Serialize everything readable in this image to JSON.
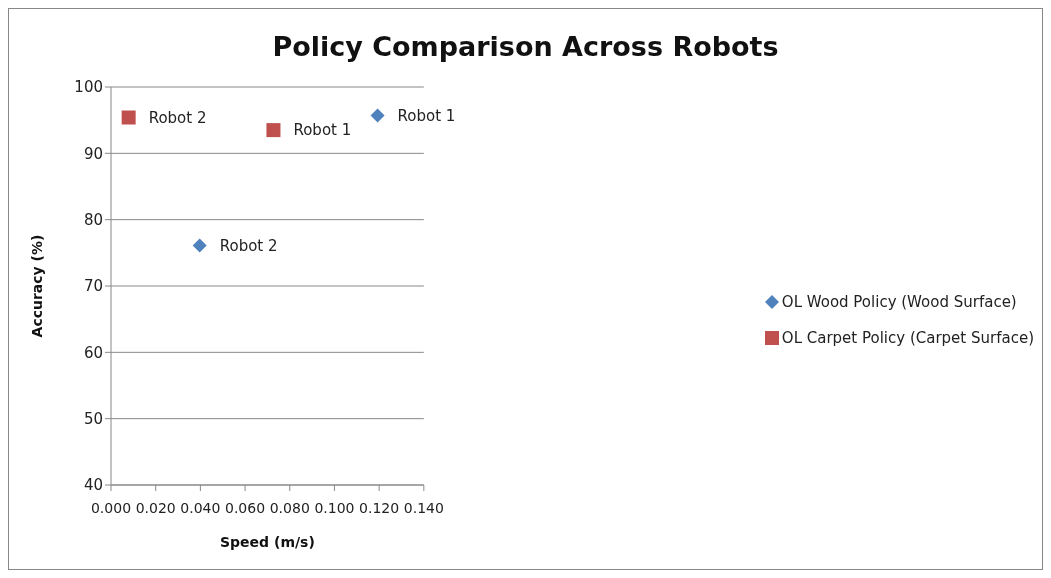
{
  "chart_data": {
    "type": "scatter",
    "title": "Policy Comparison Across Robots",
    "xlabel": "Speed (m/s)",
    "ylabel": "Accuracy  (%)",
    "xlim": [
      0,
      0.14
    ],
    "xticks": [
      {
        "value": 0,
        "label": "0.000"
      },
      {
        "value": 0.02,
        "label": "0.020"
      },
      {
        "value": 0.04,
        "label": "0.040"
      },
      {
        "value": 0.06,
        "label": "0.060"
      },
      {
        "value": 0.08,
        "label": "0.080"
      },
      {
        "value": 0.1,
        "label": "0.100"
      },
      {
        "value": 0.12,
        "label": "0.120"
      },
      {
        "value": 0.14,
        "label": "0.140"
      }
    ],
    "ylim": [
      40,
      100
    ],
    "yticks": [
      40,
      50,
      60,
      70,
      80,
      90,
      100
    ],
    "grid": "y",
    "legend": "right",
    "series": [
      {
        "name": "OL Wood Policy (Wood Surface)",
        "color": "#4f81bd",
        "marker": "diamond",
        "x": [
          0.1193,
          0.0397
        ],
        "values": [
          95.7,
          76.1
        ],
        "value_labels": [
          "Robot 1",
          "Robot 2"
        ]
      },
      {
        "name": "OL Carpet Policy (Carpet Surface)",
        "color": "#c0504d",
        "marker": "square",
        "x": [
          0.0727,
          0.0079
        ],
        "values": [
          93.5,
          95.4
        ],
        "value_labels": [
          "Robot 1",
          "Robot 2"
        ]
      }
    ]
  }
}
